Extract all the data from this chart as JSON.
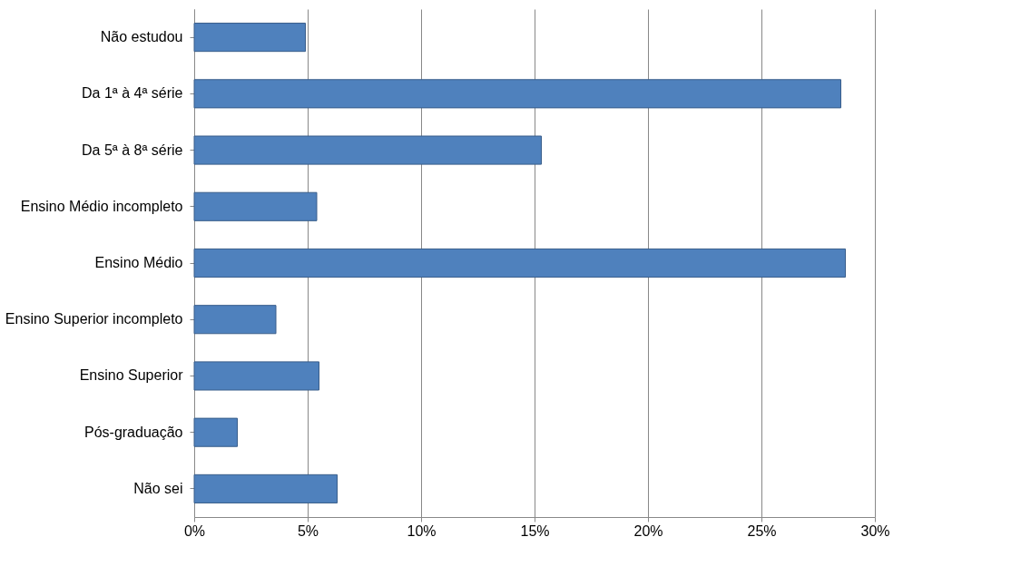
{
  "chart_data": {
    "type": "bar",
    "orientation": "horizontal",
    "categories": [
      "Não estudou",
      "Da 1ª à 4ª série",
      "Da 5ª à 8ª série",
      "Ensino Médio incompleto",
      "Ensino Médio",
      "Ensino Superior incompleto",
      "Ensino Superior",
      "Pós-graduação",
      "Não sei"
    ],
    "values": [
      4.9,
      28.5,
      15.3,
      5.4,
      28.7,
      3.6,
      5.5,
      1.9,
      6.3
    ],
    "color": "#4f81bd",
    "xlim": [
      0,
      30
    ],
    "xticks": [
      {
        "value": 0,
        "label": "0%"
      },
      {
        "value": 5,
        "label": "5%"
      },
      {
        "value": 10,
        "label": "10%"
      },
      {
        "value": 15,
        "label": "15%"
      },
      {
        "value": 20,
        "label": "20%"
      },
      {
        "value": 25,
        "label": "25%"
      },
      {
        "value": 30,
        "label": "30%"
      }
    ],
    "grid": "x"
  }
}
